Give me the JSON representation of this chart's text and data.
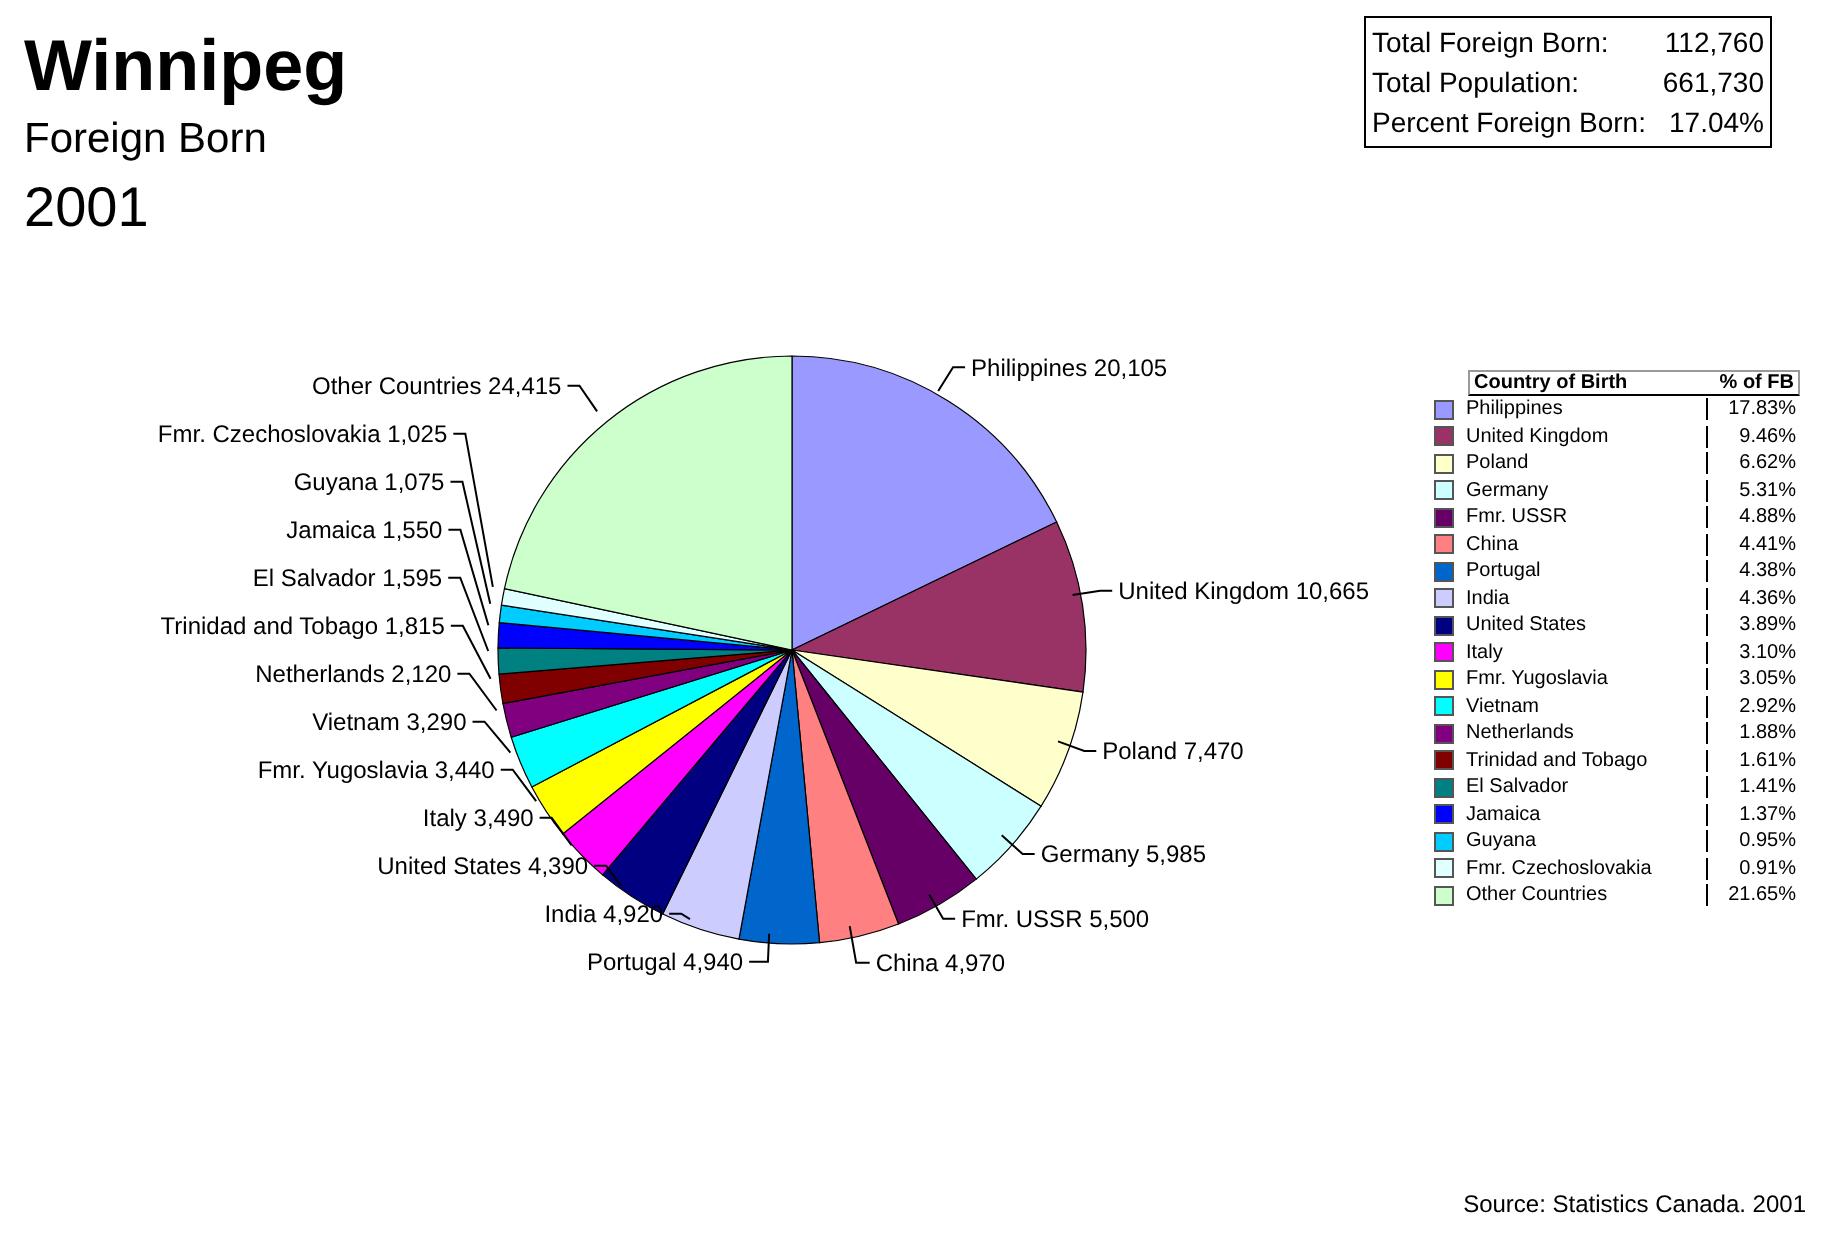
{
  "chart_data": {
    "type": "pie",
    "title": "Winnipeg",
    "subtitle": "Foreign Born",
    "categories": [
      "Philippines",
      "United Kingdom",
      "Poland",
      "Germany",
      "Fmr. USSR",
      "China",
      "Portugal",
      "India",
      "United States",
      "Italy",
      "Fmr. Yugoslavia",
      "Vietnam",
      "Netherlands",
      "Trinidad and Tobago",
      "El Salvador",
      "Jamaica",
      "Guyana",
      "Fmr. Czechoslovakia",
      "Other Countries"
    ],
    "values": [
      20105,
      10665,
      7470,
      5985,
      5500,
      4970,
      4940,
      4920,
      4390,
      3490,
      3440,
      3290,
      2120,
      1815,
      1595,
      1550,
      1075,
      1025,
      24415
    ],
    "value_labels": [
      "20,105",
      "10,665",
      "7,470",
      "5,985",
      "5,500",
      "4,970",
      "4,940",
      "4,920",
      "4,390",
      "3,490",
      "3,440",
      "3,290",
      "2,120",
      "1,815",
      "1,595",
      "1,550",
      "1,075",
      "1,025",
      "24,415"
    ],
    "colors": [
      "#9999ff",
      "#993366",
      "#ffffcc",
      "#ccffff",
      "#660066",
      "#ff8080",
      "#0066cc",
      "#ccccff",
      "#000080",
      "#ff00ff",
      "#ffff00",
      "#00ffff",
      "#800080",
      "#800000",
      "#008080",
      "#0000ff",
      "#00ccff",
      "#e0ffff",
      "#ccffcc"
    ],
    "legend": "right",
    "legend_title": "Country of Birth",
    "annotations": [
      "2001",
      "Total Foreign Born:",
      "112,760",
      "Total Population:",
      "661,730",
      "Percent Foreign Born:",
      "17.04%",
      "% of FB",
      "17.83%",
      "9.46%",
      "6.62%",
      "5.31%",
      "4.88%",
      "4.41%",
      "4.38%",
      "4.36%",
      "3.89%",
      "3.10%",
      "3.05%",
      "2.92%",
      "1.88%",
      "1.61%",
      "1.41%",
      "1.37%",
      "0.95%",
      "0.91%",
      "21.65%",
      "Source: Statistics Canada. 2001"
    ]
  }
}
